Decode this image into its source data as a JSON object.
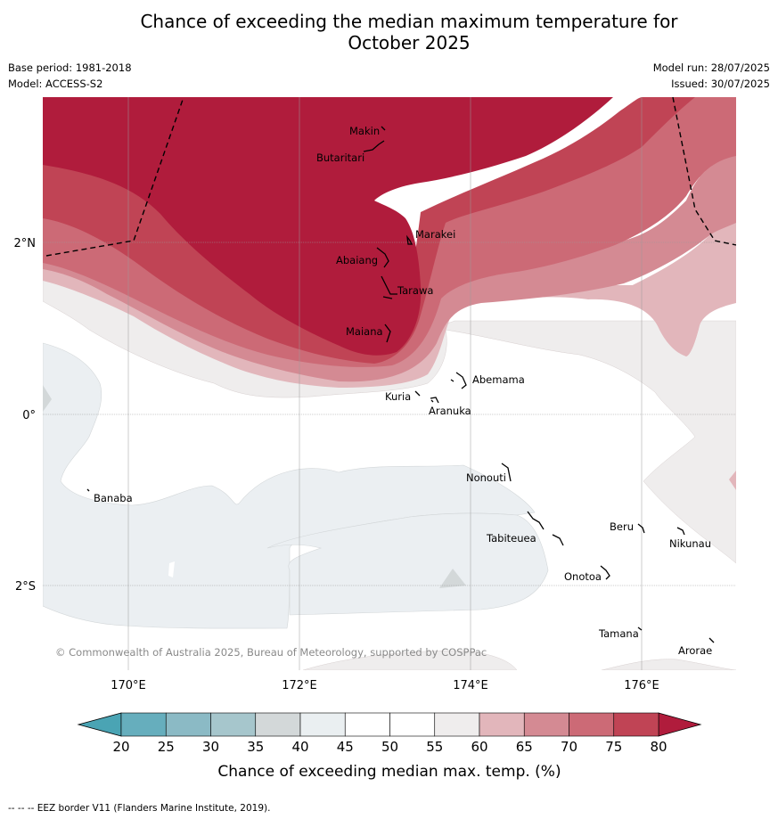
{
  "title_line1": "Chance of exceeding the median maximum temperature for",
  "title_line2": "October 2025",
  "base_period": "Base period: 1981-2018",
  "model": "Model: ACCESS-S2",
  "model_run": "Model run: 28/07/2025",
  "issued": "Issued: 30/07/2025",
  "lat_labels": [
    "2°N",
    "0°",
    "2°S"
  ],
  "lon_labels": [
    "170°E",
    "172°E",
    "174°E",
    "176°E"
  ],
  "places": [
    "Makin",
    "Butaritari",
    "Marakei",
    "Abaiang",
    "Tarawa",
    "Maiana",
    "Abemama",
    "Kuria",
    "Aranuka",
    "Nonouti",
    "Banaba",
    "Beru",
    "Nikunau",
    "Tabiteuea",
    "Onotoa",
    "Tamana",
    "Arorae"
  ],
  "copyright": "© Commonwealth of Australia 2025, Bureau of Meteorology, supported by COSPPac",
  "colorbar": {
    "ticks": [
      "20",
      "25",
      "30",
      "35",
      "40",
      "45",
      "50",
      "55",
      "60",
      "65",
      "70",
      "75",
      "80"
    ],
    "colors": [
      "#66aebd",
      "#8bbac5",
      "#a6c6cc",
      "#d3d8d9",
      "#eaeff1",
      "#ffffff",
      "#ffffff",
      "#efeded",
      "#e2b6bb",
      "#d48a93",
      "#cc6a76",
      "#c04455"
    ],
    "low_color": "#4aa4b4",
    "high_color": "#b01c3c",
    "label": "Chance of exceeding median max. temp. (%)"
  },
  "footer": "--  --  -- EEZ border V11 (Flanders Marine Institute, 2019)."
}
